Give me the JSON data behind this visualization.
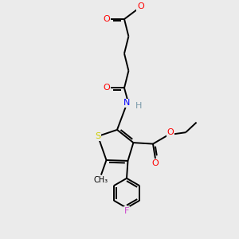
{
  "bg_color": "#ebebeb",
  "atom_colors": {
    "C": "#000000",
    "H": "#7a9aaa",
    "O": "#ff0000",
    "N": "#0000ff",
    "S": "#cccc00",
    "F": "#cc44cc"
  },
  "bond_color": "#000000",
  "bond_width": 1.4
}
